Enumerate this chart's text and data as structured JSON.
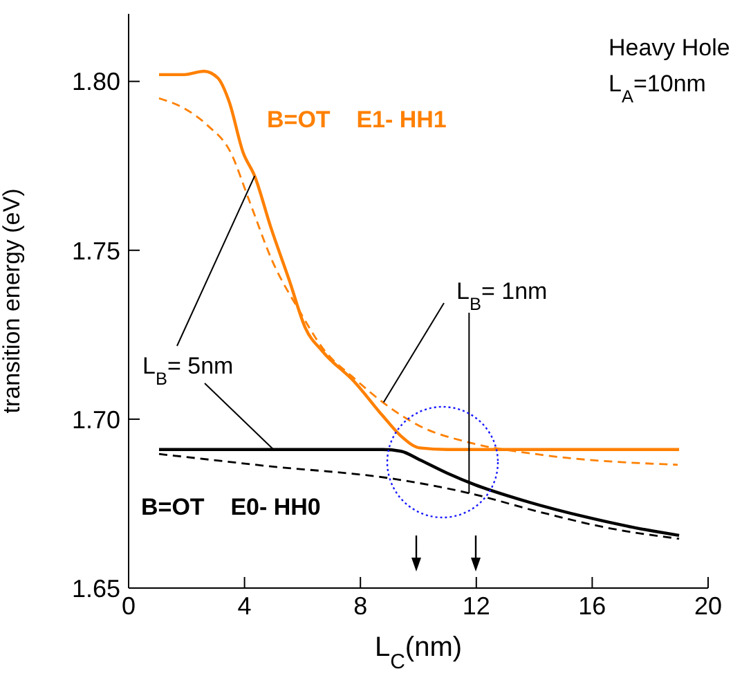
{
  "chart_data": {
    "type": "line",
    "xlabel": "L$_{C}$(nm)",
    "ylabel": "transition energy (eV)",
    "xlim": [
      0,
      20
    ],
    "xticks": [
      0,
      4,
      8,
      12,
      16,
      20
    ],
    "ylim": [
      1.65,
      1.82
    ],
    "yticks": [
      1.65,
      {
        "value": 1.7,
        "label": "1.70"
      },
      1.75,
      {
        "value": 1.8,
        "label": "1.80"
      }
    ],
    "grid": false,
    "legend": false,
    "marker": "none",
    "series": [
      {
        "color": "#ff8000",
        "line_style": "solid",
        "x": [
          1.05,
          1.92,
          2.6,
          3.08,
          3.47,
          3.95,
          4.35,
          4.9,
          5.55,
          6.1,
          6.7,
          7.8,
          8.77,
          9.4,
          10.04,
          11,
          19
        ],
        "values": [
          1.802,
          1.802,
          1.803,
          1.801,
          1.794,
          1.779,
          1.772,
          1.757,
          1.741,
          1.727,
          1.72,
          1.711,
          1.701,
          1.695,
          1.6915,
          1.691,
          1.691
        ]
      },
      {
        "color": "#ff8000",
        "line_style": "dashed",
        "x": [
          1.05,
          1.92,
          2.72,
          3.52,
          4.15,
          4.95,
          5.9,
          6.7,
          7.8,
          8.77,
          10.04,
          11.8,
          14.2,
          18.95
        ],
        "values": [
          1.795,
          1.792,
          1.787,
          1.779,
          1.765,
          1.747,
          1.732,
          1.721,
          1.712,
          1.705,
          1.698,
          1.693,
          1.6895,
          1.6865
        ]
      },
      {
        "color": "#000000",
        "line_style": "solid",
        "x": [
          1.05,
          8.77,
          9.4,
          10.04,
          11,
          11.95,
          13.4,
          15.8,
          17.4,
          19
        ],
        "values": [
          1.691,
          1.691,
          1.6905,
          1.688,
          1.684,
          1.6806,
          1.6765,
          1.671,
          1.668,
          1.6656
        ]
      },
      {
        "color": "#000000",
        "line_style": "dashed",
        "x": [
          1.05,
          4.6,
          9.4,
          11.8,
          14.2,
          16.6,
          19
        ],
        "values": [
          1.6897,
          1.6863,
          1.682,
          1.678,
          1.6725,
          1.6677,
          1.6646
        ]
      }
    ],
    "annotations": [
      "Heavy Hole",
      "L$_{A}$=10nm",
      "B=OT    E1- HH1",
      "B=OT    E0- HH0",
      {
        "text": "L$_{B}$= 5nm",
        "x": 4.35,
        "y": 1.772
      },
      {
        "text": "L$_{B}$= 1nm",
        "x": 8.8,
        "y": 1.705
      }
    ]
  }
}
